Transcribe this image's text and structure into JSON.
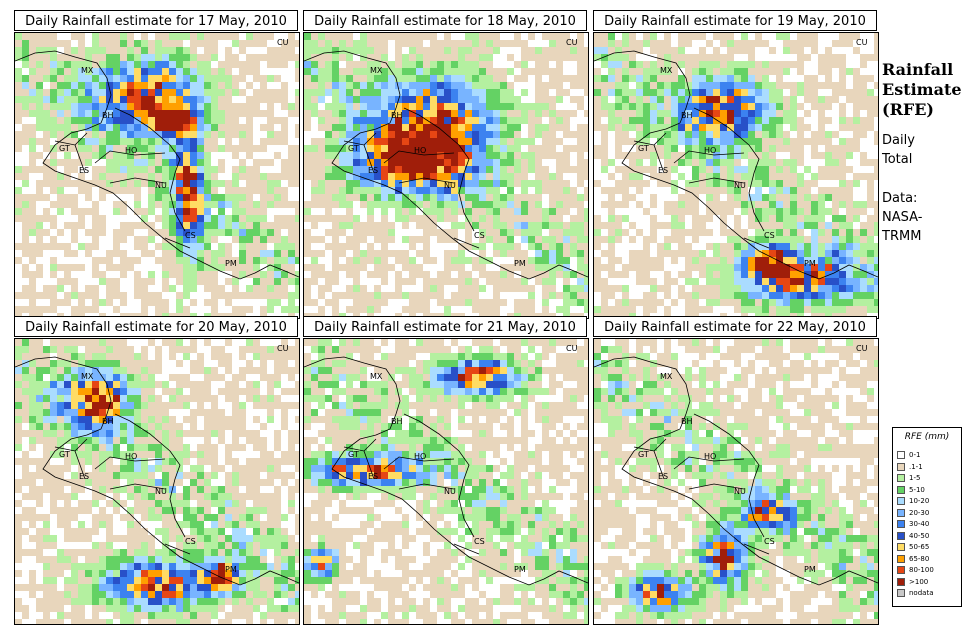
{
  "panels": [
    {
      "title": "Daily Rainfall estimate for  17 May, 2010",
      "seed": 17,
      "hot": [
        [
          0.45,
          0.2,
          0.18,
          0.12
        ],
        [
          0.55,
          0.3,
          0.08,
          0.05
        ],
        [
          0.6,
          0.55,
          0.05,
          0.2
        ]
      ]
    },
    {
      "title": "Daily Rainfall estimate for  18 May, 2010",
      "seed": 18,
      "hot": [
        [
          0.45,
          0.3,
          0.2,
          0.15
        ],
        [
          0.35,
          0.45,
          0.2,
          0.1
        ]
      ]
    },
    {
      "title": "Daily Rainfall estimate for  19 May, 2010",
      "seed": 19,
      "hot": [
        [
          0.45,
          0.25,
          0.15,
          0.1
        ],
        [
          0.7,
          0.85,
          0.2,
          0.08
        ],
        [
          0.6,
          0.78,
          0.08,
          0.05
        ]
      ]
    },
    {
      "title": "Daily Rainfall estimate for  20 May, 2010",
      "seed": 20,
      "hot": [
        [
          0.28,
          0.2,
          0.12,
          0.1
        ],
        [
          0.5,
          0.85,
          0.2,
          0.08
        ],
        [
          0.72,
          0.82,
          0.06,
          0.05
        ]
      ]
    },
    {
      "title": "Daily Rainfall estimate for  21 May, 2010",
      "seed": 21,
      "hot": [
        [
          0.6,
          0.12,
          0.15,
          0.06
        ],
        [
          0.2,
          0.45,
          0.2,
          0.05
        ],
        [
          0.05,
          0.78,
          0.05,
          0.05
        ]
      ]
    },
    {
      "title": "Daily Rainfall estimate for  22 May, 2010",
      "seed": 22,
      "hot": [
        [
          0.45,
          0.75,
          0.08,
          0.1
        ],
        [
          0.22,
          0.88,
          0.1,
          0.06
        ],
        [
          0.6,
          0.6,
          0.08,
          0.05
        ]
      ]
    }
  ],
  "country_labels": [
    "MX",
    "BH",
    "GT",
    "HO",
    "ES",
    "NU",
    "CS",
    "PM",
    "CU"
  ],
  "side": {
    "title_lines": [
      "Rainfall",
      "Estimate",
      "(RFE)"
    ],
    "daily_lines": [
      "Daily",
      "Total"
    ],
    "data_lines": [
      "Data:",
      "NASA-",
      "TRMM"
    ]
  },
  "legend": {
    "title": "RFE (mm)",
    "items": [
      {
        "label": "0-1",
        "color": "#ffffff"
      },
      {
        "label": ".1-1",
        "color": "#e8d6bc"
      },
      {
        "label": "1-5",
        "color": "#b4f0a0"
      },
      {
        "label": "5-10",
        "color": "#64d264"
      },
      {
        "label": "10-20",
        "color": "#aadcff"
      },
      {
        "label": "20-30",
        "color": "#78b4ff"
      },
      {
        "label": "30-40",
        "color": "#3c82f0"
      },
      {
        "label": "40-50",
        "color": "#2850c8"
      },
      {
        "label": "50-65",
        "color": "#ffdc64"
      },
      {
        "label": "65-80",
        "color": "#ffa000"
      },
      {
        "label": "80-100",
        "color": "#e64614"
      },
      {
        "label": ">100",
        "color": "#a01e0a"
      },
      {
        "label": "nodata",
        "color": "#c8c8c8"
      }
    ]
  }
}
